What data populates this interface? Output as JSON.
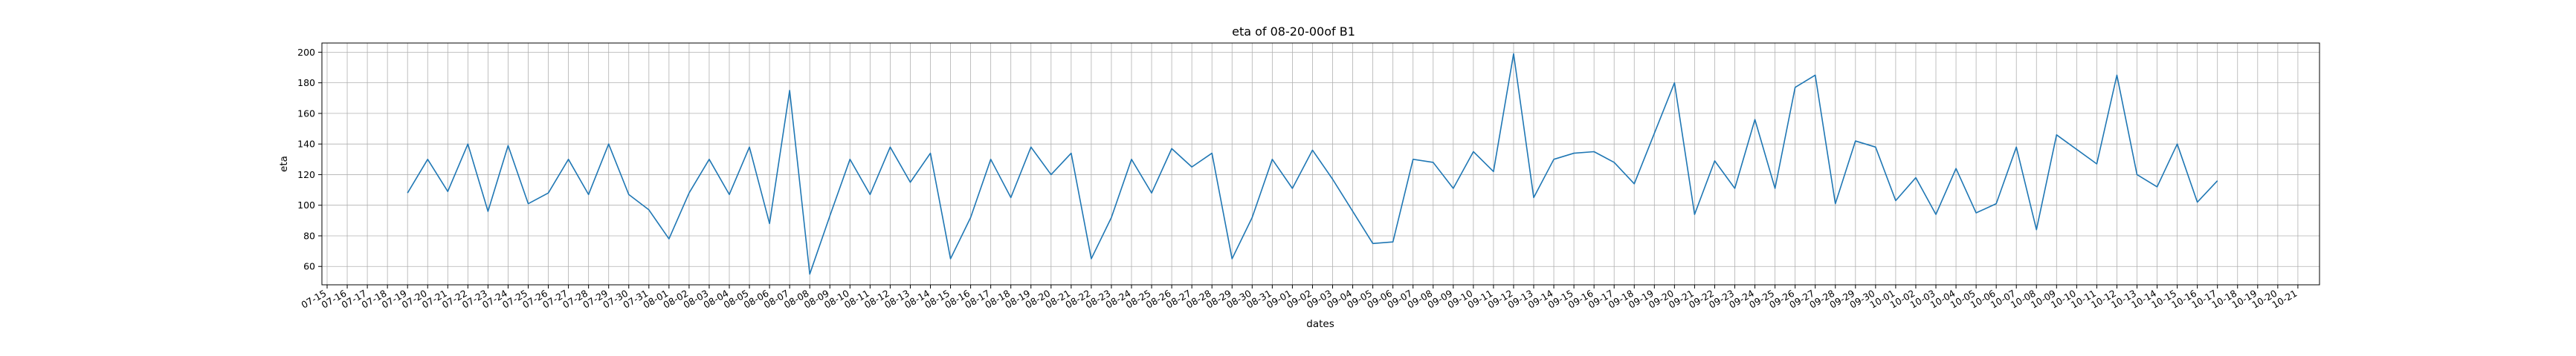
{
  "chart_data": {
    "type": "line",
    "title": "eta of 08-20-00of B1",
    "xlabel": "dates",
    "ylabel": "eta",
    "grid": true,
    "ylim": [
      48,
      206
    ],
    "yticks": [
      60,
      80,
      100,
      120,
      140,
      160,
      180,
      200
    ],
    "x_start": "2024-07-15",
    "x_ticks": [
      "07-15",
      "07-16",
      "07-17",
      "07-18",
      "07-19",
      "07-20",
      "07-21",
      "07-22",
      "07-23",
      "07-24",
      "07-25",
      "07-26",
      "07-27",
      "07-28",
      "07-29",
      "07-30",
      "07-31",
      "08-01",
      "08-02",
      "08-03",
      "08-04",
      "08-05",
      "08-06",
      "08-07",
      "08-08",
      "08-09",
      "08-10",
      "08-11",
      "08-12",
      "08-13",
      "08-14",
      "08-15",
      "08-16",
      "08-17",
      "08-18",
      "08-19",
      "08-20",
      "08-21",
      "08-22",
      "08-23",
      "08-24",
      "08-25",
      "08-26",
      "08-27",
      "08-28",
      "08-29",
      "08-30",
      "08-31",
      "09-01",
      "09-02",
      "09-03",
      "09-04",
      "09-05",
      "09-06",
      "09-07",
      "09-08",
      "09-09",
      "09-10",
      "09-11",
      "09-12",
      "09-13",
      "09-14",
      "09-15",
      "09-16",
      "09-17",
      "09-18",
      "09-19",
      "09-20",
      "09-21",
      "09-22",
      "09-23",
      "09-24",
      "09-25",
      "09-26",
      "09-27",
      "09-28",
      "09-29",
      "09-30",
      "10-01",
      "10-02",
      "10-03",
      "10-04",
      "10-05",
      "10-06",
      "10-07",
      "10-08",
      "10-09",
      "10-10",
      "10-11",
      "10-12",
      "10-13",
      "10-14",
      "10-15",
      "10-16",
      "10-17",
      "10-18",
      "10-19",
      "10-20",
      "10-21"
    ],
    "series": [
      {
        "name": "",
        "color": "#1f77b4",
        "points": [
          {
            "x": "07-19",
            "y": 108
          },
          {
            "x": "07-20",
            "y": 130
          },
          {
            "x": "07-21",
            "y": 109
          },
          {
            "x": "07-22",
            "y": 140
          },
          {
            "x": "07-23",
            "y": 96
          },
          {
            "x": "07-24",
            "y": 139
          },
          {
            "x": "07-25",
            "y": 101
          },
          {
            "x": "07-26",
            "y": 108
          },
          {
            "x": "07-27",
            "y": 130
          },
          {
            "x": "07-28",
            "y": 107
          },
          {
            "x": "07-29",
            "y": 140
          },
          {
            "x": "07-30",
            "y": 107
          },
          {
            "x": "07-31",
            "y": 97
          },
          {
            "x": "08-01",
            "y": 78
          },
          {
            "x": "08-02",
            "y": 108
          },
          {
            "x": "08-03",
            "y": 130
          },
          {
            "x": "08-04",
            "y": 107
          },
          {
            "x": "08-05",
            "y": 138
          },
          {
            "x": "08-06",
            "y": 88
          },
          {
            "x": "08-07",
            "y": 175
          },
          {
            "x": "08-08",
            "y": 55
          },
          {
            "x": "08-09",
            "y": 93
          },
          {
            "x": "08-10",
            "y": 130
          },
          {
            "x": "08-11",
            "y": 107
          },
          {
            "x": "08-12",
            "y": 138
          },
          {
            "x": "08-13",
            "y": 115
          },
          {
            "x": "08-14",
            "y": 134
          },
          {
            "x": "08-15",
            "y": 65
          },
          {
            "x": "08-16",
            "y": 92
          },
          {
            "x": "08-17",
            "y": 130
          },
          {
            "x": "08-18",
            "y": 105
          },
          {
            "x": "08-19",
            "y": 138
          },
          {
            "x": "08-20",
            "y": 120
          },
          {
            "x": "08-21",
            "y": 134
          },
          {
            "x": "08-22",
            "y": 65
          },
          {
            "x": "08-23",
            "y": 92
          },
          {
            "x": "08-24",
            "y": 130
          },
          {
            "x": "08-25",
            "y": 108
          },
          {
            "x": "08-26",
            "y": 137
          },
          {
            "x": "08-27",
            "y": 125
          },
          {
            "x": "08-28",
            "y": 134
          },
          {
            "x": "08-29",
            "y": 65
          },
          {
            "x": "08-30",
            "y": 92
          },
          {
            "x": "08-31",
            "y": 130
          },
          {
            "x": "09-01",
            "y": 111
          },
          {
            "x": "09-02",
            "y": 136
          },
          {
            "x": "09-03",
            "y": 117
          },
          {
            "x": "09-04",
            "y": 96
          },
          {
            "x": "09-05",
            "y": 75
          },
          {
            "x": "09-06",
            "y": 76
          },
          {
            "x": "09-07",
            "y": 130
          },
          {
            "x": "09-08",
            "y": 128
          },
          {
            "x": "09-09",
            "y": 111
          },
          {
            "x": "09-10",
            "y": 135
          },
          {
            "x": "09-11",
            "y": 122
          },
          {
            "x": "09-12",
            "y": 199
          },
          {
            "x": "09-13",
            "y": 105
          },
          {
            "x": "09-14",
            "y": 130
          },
          {
            "x": "09-15",
            "y": 134
          },
          {
            "x": "09-16",
            "y": 135
          },
          {
            "x": "09-17",
            "y": 128
          },
          {
            "x": "09-18",
            "y": 114
          },
          {
            "x": "09-20",
            "y": 180
          },
          {
            "x": "09-21",
            "y": 94
          },
          {
            "x": "09-22",
            "y": 129
          },
          {
            "x": "09-23",
            "y": 111
          },
          {
            "x": "09-24",
            "y": 156
          },
          {
            "x": "09-25",
            "y": 111
          },
          {
            "x": "09-26",
            "y": 177
          },
          {
            "x": "09-27",
            "y": 185
          },
          {
            "x": "09-28",
            "y": 101
          },
          {
            "x": "09-29",
            "y": 142
          },
          {
            "x": "09-30",
            "y": 138
          },
          {
            "x": "10-01",
            "y": 103
          },
          {
            "x": "10-02",
            "y": 118
          },
          {
            "x": "10-03",
            "y": 94
          },
          {
            "x": "10-04",
            "y": 124
          },
          {
            "x": "10-05",
            "y": 95
          },
          {
            "x": "10-06",
            "y": 101
          },
          {
            "x": "10-07",
            "y": 138
          },
          {
            "x": "10-08",
            "y": 84
          },
          {
            "x": "10-09",
            "y": 146
          },
          {
            "x": "10-11",
            "y": 127
          },
          {
            "x": "10-12",
            "y": 185
          },
          {
            "x": "10-13",
            "y": 120
          },
          {
            "x": "10-14",
            "y": 112
          },
          {
            "x": "10-15",
            "y": 140
          },
          {
            "x": "10-16",
            "y": 102
          },
          {
            "x": "10-17",
            "y": 116
          }
        ]
      }
    ]
  }
}
